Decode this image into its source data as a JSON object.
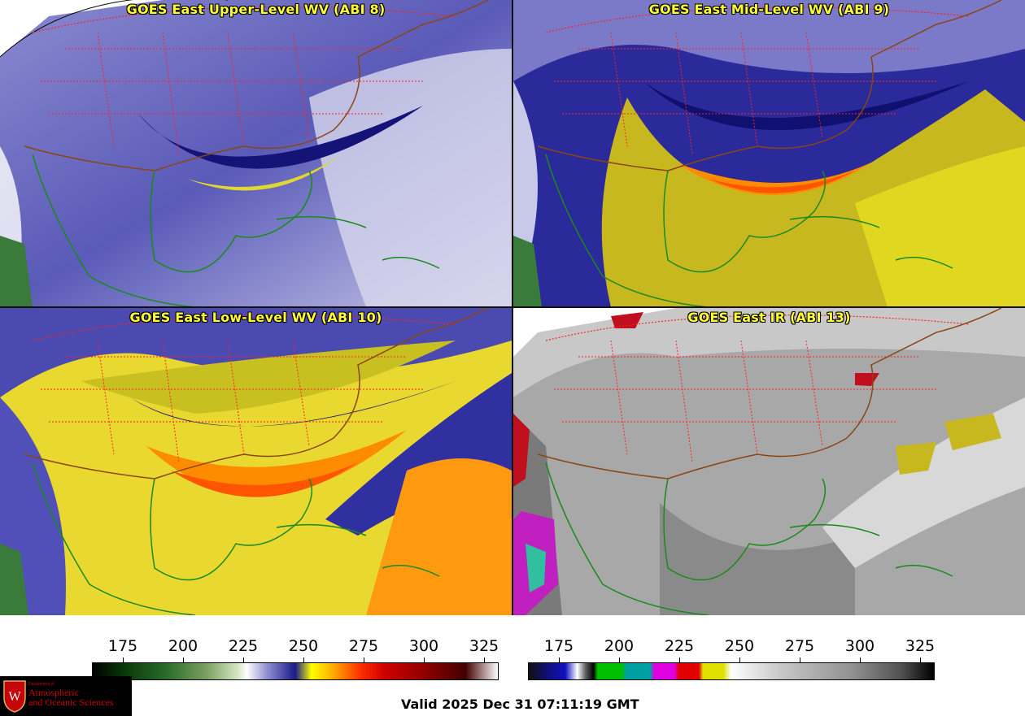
{
  "panels": [
    {
      "title": "GOES East Upper-Level WV (ABI 8)"
    },
    {
      "title": "GOES East Mid-Level WV (ABI 9)"
    },
    {
      "title": "GOES East Low-Level WV (ABI 10)"
    },
    {
      "title": "GOES East IR (ABI 13)"
    }
  ],
  "colorbars": {
    "wv": {
      "ticks": [
        "175",
        "200",
        "225",
        "250",
        "275",
        "300",
        "325"
      ]
    },
    "ir": {
      "ticks": [
        "175",
        "200",
        "225",
        "250",
        "275",
        "300",
        "325"
      ]
    }
  },
  "valid_time": "Valid 2025 Dec 31 07:11:19 GMT",
  "logo": {
    "dept_small": "Department of",
    "line1": "Atmospheric",
    "line2": "and Oceanic Sciences"
  },
  "colors": {
    "title_text": "#ffff33",
    "state_borders": "#ff2020",
    "coastlines": "#1a8a1a",
    "country_borders": "#8b4513"
  }
}
